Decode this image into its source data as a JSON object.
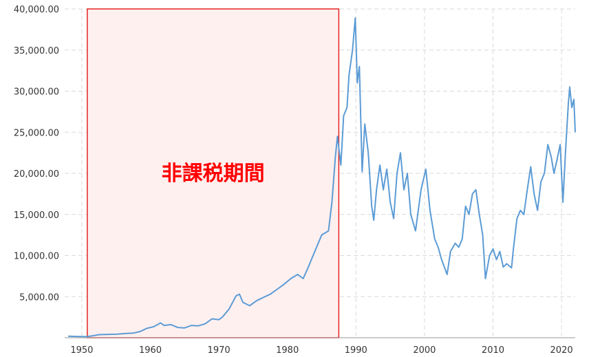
{
  "chart_data": {
    "type": "line",
    "x_unit": "year",
    "xlim": [
      1947.5,
      2022
    ],
    "ylim": [
      0,
      40000
    ],
    "y_ticks": [
      5000,
      10000,
      15000,
      20000,
      25000,
      30000,
      35000,
      40000
    ],
    "y_tick_labels": [
      "5,000.00",
      "10,000.00",
      "15,000.00",
      "20,000.00",
      "25,000.00",
      "30,000.00",
      "35,000.00",
      "40,000.00"
    ],
    "x_ticks": [
      1950,
      1960,
      1970,
      1980,
      1990,
      2000,
      2010,
      2020
    ],
    "x_tick_labels": [
      "1950",
      "1960",
      "1970",
      "1980",
      "1990",
      "2000",
      "2010",
      "2020"
    ],
    "grid": true,
    "series": [
      {
        "color": "#5b9bd5",
        "points": [
          [
            1948.0,
            180
          ],
          [
            1949.5,
            150
          ],
          [
            1950.5,
            130
          ],
          [
            1951.5,
            220
          ],
          [
            1952.5,
            380
          ],
          [
            1953.5,
            400
          ],
          [
            1955.0,
            430
          ],
          [
            1956.5,
            520
          ],
          [
            1957.5,
            560
          ],
          [
            1958.5,
            750
          ],
          [
            1959.5,
            1150
          ],
          [
            1960.5,
            1350
          ],
          [
            1961.5,
            1800
          ],
          [
            1962.0,
            1500
          ],
          [
            1963.0,
            1600
          ],
          [
            1964.0,
            1250
          ],
          [
            1965.0,
            1200
          ],
          [
            1966.0,
            1500
          ],
          [
            1967.0,
            1450
          ],
          [
            1968.0,
            1700
          ],
          [
            1969.0,
            2300
          ],
          [
            1970.0,
            2200
          ],
          [
            1970.5,
            2500
          ],
          [
            1971.5,
            3500
          ],
          [
            1972.5,
            5100
          ],
          [
            1973.0,
            5300
          ],
          [
            1973.5,
            4300
          ],
          [
            1974.5,
            3900
          ],
          [
            1975.5,
            4500
          ],
          [
            1976.5,
            4900
          ],
          [
            1977.5,
            5300
          ],
          [
            1978.5,
            5900
          ],
          [
            1979.5,
            6500
          ],
          [
            1980.5,
            7200
          ],
          [
            1981.5,
            7700
          ],
          [
            1982.3,
            7200
          ],
          [
            1983.0,
            8500
          ],
          [
            1984.0,
            10500
          ],
          [
            1985.0,
            12500
          ],
          [
            1986.0,
            13000
          ],
          [
            1986.5,
            16500
          ],
          [
            1987.0,
            22000
          ],
          [
            1987.3,
            24500
          ],
          [
            1987.8,
            21000
          ],
          [
            1988.2,
            27000
          ],
          [
            1988.7,
            28000
          ],
          [
            1989.0,
            32000
          ],
          [
            1989.5,
            35000
          ],
          [
            1989.9,
            38900
          ],
          [
            1990.2,
            31000
          ],
          [
            1990.5,
            33000
          ],
          [
            1990.9,
            20200
          ],
          [
            1991.3,
            26000
          ],
          [
            1991.8,
            22500
          ],
          [
            1992.3,
            16000
          ],
          [
            1992.6,
            14300
          ],
          [
            1993.0,
            18000
          ],
          [
            1993.5,
            21000
          ],
          [
            1994.0,
            18000
          ],
          [
            1994.5,
            20500
          ],
          [
            1995.0,
            16500
          ],
          [
            1995.5,
            14500
          ],
          [
            1996.0,
            20000
          ],
          [
            1996.5,
            22500
          ],
          [
            1997.0,
            18000
          ],
          [
            1997.5,
            20000
          ],
          [
            1998.0,
            15000
          ],
          [
            1998.7,
            13000
          ],
          [
            1999.5,
            18000
          ],
          [
            2000.2,
            20500
          ],
          [
            2000.8,
            15500
          ],
          [
            2001.5,
            12000
          ],
          [
            2002.0,
            11000
          ],
          [
            2002.5,
            9500
          ],
          [
            2003.3,
            7700
          ],
          [
            2003.8,
            10500
          ],
          [
            2004.5,
            11500
          ],
          [
            2005.0,
            11000
          ],
          [
            2005.5,
            12000
          ],
          [
            2006.0,
            16000
          ],
          [
            2006.5,
            15000
          ],
          [
            2007.0,
            17500
          ],
          [
            2007.5,
            18000
          ],
          [
            2008.0,
            15000
          ],
          [
            2008.5,
            12500
          ],
          [
            2008.9,
            7200
          ],
          [
            2009.5,
            10000
          ],
          [
            2010.0,
            10800
          ],
          [
            2010.5,
            9500
          ],
          [
            2011.0,
            10500
          ],
          [
            2011.5,
            8600
          ],
          [
            2012.0,
            9000
          ],
          [
            2012.7,
            8500
          ],
          [
            2013.0,
            11000
          ],
          [
            2013.5,
            14500
          ],
          [
            2014.0,
            15500
          ],
          [
            2014.5,
            15000
          ],
          [
            2015.0,
            18000
          ],
          [
            2015.5,
            20800
          ],
          [
            2016.0,
            17500
          ],
          [
            2016.5,
            15500
          ],
          [
            2017.0,
            19000
          ],
          [
            2017.5,
            20000
          ],
          [
            2018.0,
            23500
          ],
          [
            2018.5,
            22000
          ],
          [
            2018.9,
            20000
          ],
          [
            2019.3,
            21500
          ],
          [
            2019.8,
            23500
          ],
          [
            2020.2,
            16500
          ],
          [
            2020.6,
            23000
          ],
          [
            2021.0,
            28500
          ],
          [
            2021.2,
            30500
          ],
          [
            2021.5,
            28000
          ],
          [
            2021.8,
            29000
          ],
          [
            2022.0,
            25000
          ]
        ]
      }
    ],
    "annotation": {
      "text": "非課税期間",
      "x_start": 1950.8,
      "x_end": 1987.5,
      "fill": "#fff0f0",
      "stroke": "#e62020"
    }
  }
}
